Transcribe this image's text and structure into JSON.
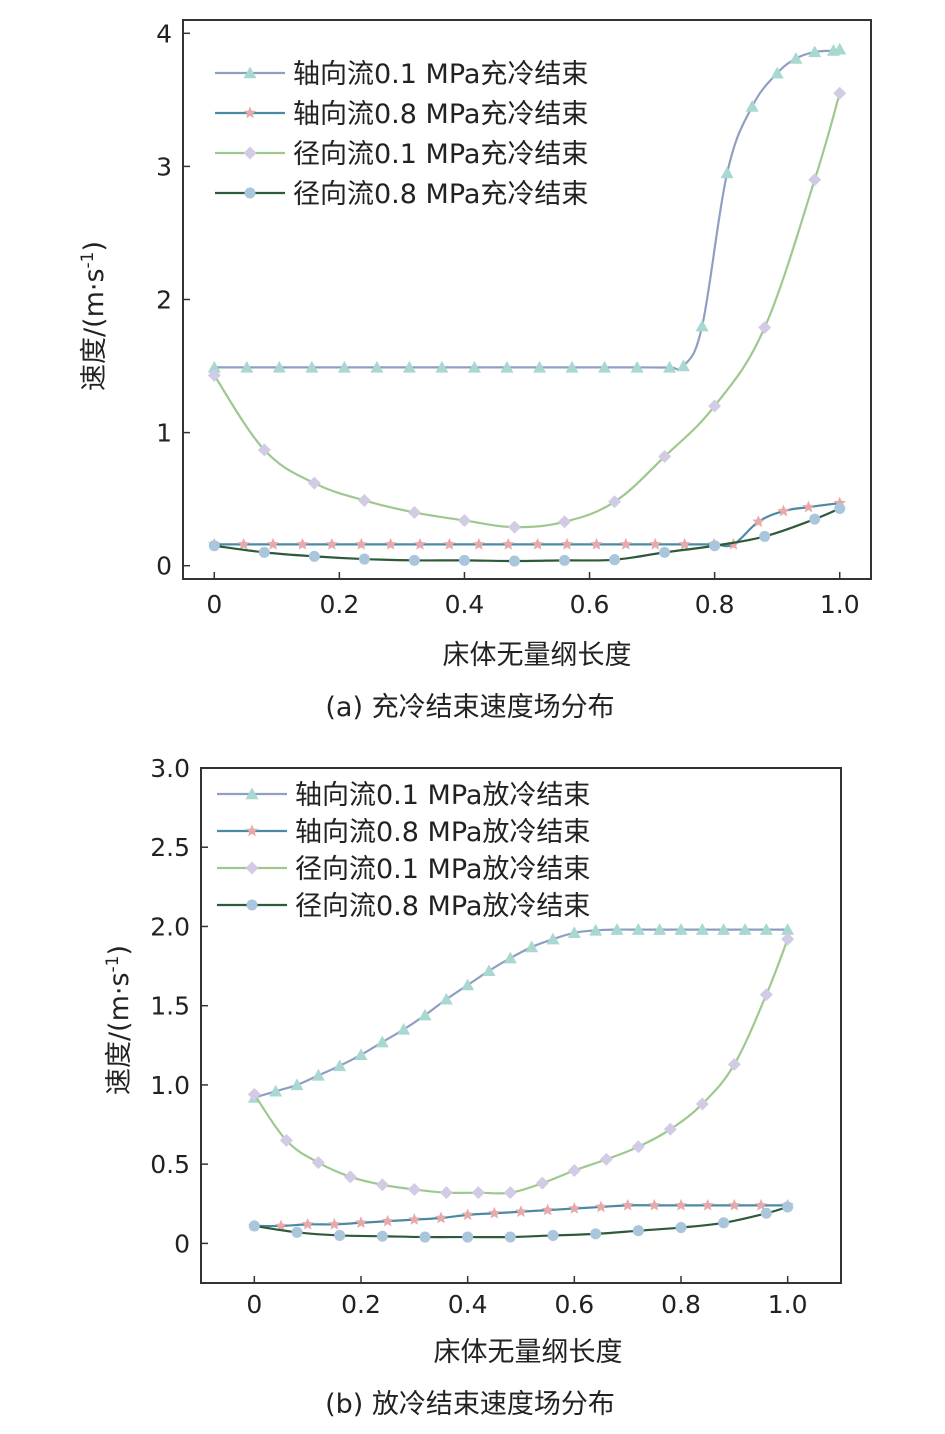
{
  "chart_data": [
    {
      "type": "line",
      "id": "a",
      "caption": "(a) 充冷结束速度场分布",
      "xlabel": "床体无量纲长度",
      "ylabel": "速度/(m·s",
      "ylabel_sup": "-1",
      "ylabel_close": ")",
      "xlim": [
        -0.05,
        1.05
      ],
      "ylim": [
        -0.1,
        4.1
      ],
      "xticks": [
        0,
        0.2,
        0.4,
        0.6,
        0.8,
        1.0
      ],
      "xtick_labels": [
        "0",
        "0.2",
        "0.4",
        "0.6",
        "0.8",
        "1.0"
      ],
      "yticks": [
        0,
        1,
        2,
        3,
        4
      ],
      "ytick_labels": [
        "0",
        "1",
        "2",
        "3",
        "4"
      ],
      "legend_position": "top-left",
      "series": [
        {
          "name": "轴向流0.1 MPa充冷结束",
          "line_color": "#8f9fc4",
          "marker": "triangle",
          "marker_color": "#a8d8cf",
          "x": [
            0,
            0.052,
            0.104,
            0.156,
            0.208,
            0.26,
            0.312,
            0.364,
            0.416,
            0.468,
            0.52,
            0.572,
            0.624,
            0.676,
            0.728,
            0.75,
            0.78,
            0.82,
            0.86,
            0.9,
            0.93,
            0.96,
            0.99,
            1.0
          ],
          "y": [
            1.49,
            1.49,
            1.49,
            1.49,
            1.49,
            1.49,
            1.49,
            1.49,
            1.49,
            1.49,
            1.49,
            1.49,
            1.49,
            1.49,
            1.49,
            1.5,
            1.8,
            2.95,
            3.45,
            3.7,
            3.81,
            3.86,
            3.87,
            3.88
          ]
        },
        {
          "name": "轴向流0.8 MPa充冷结束",
          "line_color": "#4a8aa3",
          "marker": "star",
          "marker_color": "#e8a9aa",
          "x": [
            0,
            0.047,
            0.094,
            0.141,
            0.188,
            0.235,
            0.282,
            0.329,
            0.376,
            0.423,
            0.47,
            0.517,
            0.564,
            0.611,
            0.658,
            0.705,
            0.752,
            0.799,
            0.83,
            0.87,
            0.91,
            0.95,
            1.0
          ],
          "y": [
            0.16,
            0.16,
            0.16,
            0.16,
            0.16,
            0.16,
            0.16,
            0.16,
            0.16,
            0.16,
            0.16,
            0.16,
            0.16,
            0.16,
            0.16,
            0.16,
            0.16,
            0.16,
            0.16,
            0.33,
            0.41,
            0.44,
            0.47
          ]
        },
        {
          "name": "径向流0.1 MPa充冷结束",
          "line_color": "#9fc88f",
          "marker": "diamond",
          "marker_color": "#d2cbe6",
          "x": [
            0,
            0.08,
            0.16,
            0.24,
            0.32,
            0.4,
            0.48,
            0.56,
            0.64,
            0.72,
            0.8,
            0.88,
            0.96,
            1.0
          ],
          "y": [
            1.43,
            0.87,
            0.62,
            0.49,
            0.4,
            0.34,
            0.29,
            0.33,
            0.48,
            0.82,
            1.2,
            1.79,
            2.9,
            3.55
          ]
        },
        {
          "name": "径向流0.8 MPa充冷结束",
          "line_color": "#2f5a3a",
          "marker": "circle",
          "marker_color": "#a9c6dc",
          "x": [
            0,
            0.08,
            0.16,
            0.24,
            0.32,
            0.4,
            0.48,
            0.56,
            0.64,
            0.72,
            0.8,
            0.88,
            0.96,
            1.0
          ],
          "y": [
            0.15,
            0.1,
            0.07,
            0.05,
            0.04,
            0.04,
            0.035,
            0.04,
            0.045,
            0.1,
            0.15,
            0.22,
            0.35,
            0.43
          ]
        }
      ]
    },
    {
      "type": "line",
      "id": "b",
      "caption": "(b) 放冷结束速度场分布",
      "xlabel": "床体无量纲长度",
      "ylabel": "速度/(m·s",
      "ylabel_sup": "-1",
      "ylabel_close": ")",
      "xlim": [
        -0.1,
        1.1
      ],
      "ylim": [
        -0.25,
        3.0
      ],
      "xticks": [
        0,
        0.2,
        0.4,
        0.6,
        0.8,
        1.0
      ],
      "xtick_labels": [
        "0",
        "0.2",
        "0.4",
        "0.6",
        "0.8",
        "1.0"
      ],
      "yticks": [
        0,
        0.5,
        1.0,
        1.5,
        2.0,
        2.5,
        3.0
      ],
      "ytick_labels": [
        "0",
        "0.5",
        "1.0",
        "1.5",
        "2.0",
        "2.5",
        "3.0"
      ],
      "legend_position": "top-left",
      "series": [
        {
          "name": "轴向流0.1 MPa放冷结束",
          "line_color": "#8f9fc4",
          "marker": "triangle",
          "marker_color": "#a8d8cf",
          "x": [
            0,
            0.04,
            0.08,
            0.12,
            0.16,
            0.2,
            0.24,
            0.28,
            0.32,
            0.36,
            0.4,
            0.44,
            0.48,
            0.52,
            0.56,
            0.6,
            0.64,
            0.68,
            0.72,
            0.76,
            0.8,
            0.84,
            0.88,
            0.92,
            0.96,
            1.0
          ],
          "y": [
            0.92,
            0.96,
            1.0,
            1.06,
            1.12,
            1.19,
            1.27,
            1.35,
            1.44,
            1.54,
            1.63,
            1.72,
            1.8,
            1.87,
            1.92,
            1.96,
            1.975,
            1.98,
            1.98,
            1.98,
            1.98,
            1.98,
            1.98,
            1.98,
            1.98,
            1.98
          ]
        },
        {
          "name": "轴向流0.8 MPa放冷结束",
          "line_color": "#4a8aa3",
          "marker": "star",
          "marker_color": "#e8a9aa",
          "x": [
            0,
            0.05,
            0.1,
            0.15,
            0.2,
            0.25,
            0.3,
            0.35,
            0.4,
            0.45,
            0.5,
            0.55,
            0.6,
            0.65,
            0.7,
            0.75,
            0.8,
            0.85,
            0.9,
            0.95,
            1.0
          ],
          "y": [
            0.11,
            0.11,
            0.12,
            0.12,
            0.13,
            0.14,
            0.15,
            0.16,
            0.18,
            0.19,
            0.2,
            0.21,
            0.22,
            0.23,
            0.24,
            0.24,
            0.24,
            0.24,
            0.24,
            0.24,
            0.24
          ]
        },
        {
          "name": "径向流0.1 MPa放冷结束",
          "line_color": "#9fc88f",
          "marker": "diamond",
          "marker_color": "#d2cbe6",
          "x": [
            0,
            0.06,
            0.12,
            0.18,
            0.24,
            0.3,
            0.36,
            0.42,
            0.48,
            0.54,
            0.6,
            0.66,
            0.72,
            0.78,
            0.84,
            0.9,
            0.96,
            1.0
          ],
          "y": [
            0.94,
            0.65,
            0.51,
            0.42,
            0.37,
            0.34,
            0.32,
            0.32,
            0.32,
            0.38,
            0.46,
            0.53,
            0.61,
            0.72,
            0.88,
            1.13,
            1.57,
            1.92
          ]
        },
        {
          "name": "径向流0.8 MPa放冷结束",
          "line_color": "#2f5a3a",
          "marker": "circle",
          "marker_color": "#a9c6dc",
          "x": [
            0,
            0.08,
            0.16,
            0.24,
            0.32,
            0.4,
            0.48,
            0.56,
            0.64,
            0.72,
            0.8,
            0.88,
            0.96,
            1.0
          ],
          "y": [
            0.11,
            0.07,
            0.05,
            0.045,
            0.04,
            0.04,
            0.04,
            0.05,
            0.06,
            0.08,
            0.1,
            0.13,
            0.19,
            0.23
          ]
        }
      ]
    }
  ]
}
